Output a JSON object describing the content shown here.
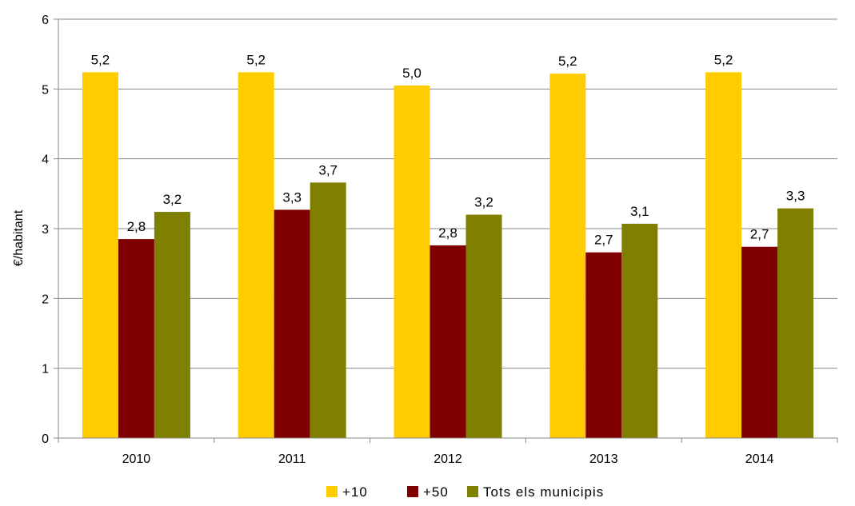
{
  "chart_data": {
    "type": "bar",
    "categories": [
      "2010",
      "2011",
      "2012",
      "2013",
      "2014"
    ],
    "series": [
      {
        "name": "+10",
        "color": "#FFCC00",
        "values": [
          5.24,
          5.24,
          5.05,
          5.22,
          5.24
        ],
        "labels": [
          "5,2",
          "5,2",
          "5,0",
          "5,2",
          "5,2"
        ]
      },
      {
        "name": "+50",
        "color": "#800000",
        "values": [
          2.85,
          3.27,
          2.76,
          2.66,
          2.74
        ],
        "labels": [
          "2,8",
          "3,3",
          "2,8",
          "2,7",
          "2,7"
        ]
      },
      {
        "name": "Tots els municipis",
        "color": "#808000",
        "values": [
          3.24,
          3.66,
          3.2,
          3.07,
          3.29
        ],
        "labels": [
          "3,2",
          "3,7",
          "3,2",
          "3,1",
          "3,3"
        ]
      }
    ],
    "ylabel": "€/habitant",
    "ylim": [
      0,
      6
    ],
    "yticks": [
      "0",
      "1",
      "2",
      "3",
      "4",
      "5",
      "6"
    ],
    "grid": true,
    "legend_position": "bottom"
  }
}
